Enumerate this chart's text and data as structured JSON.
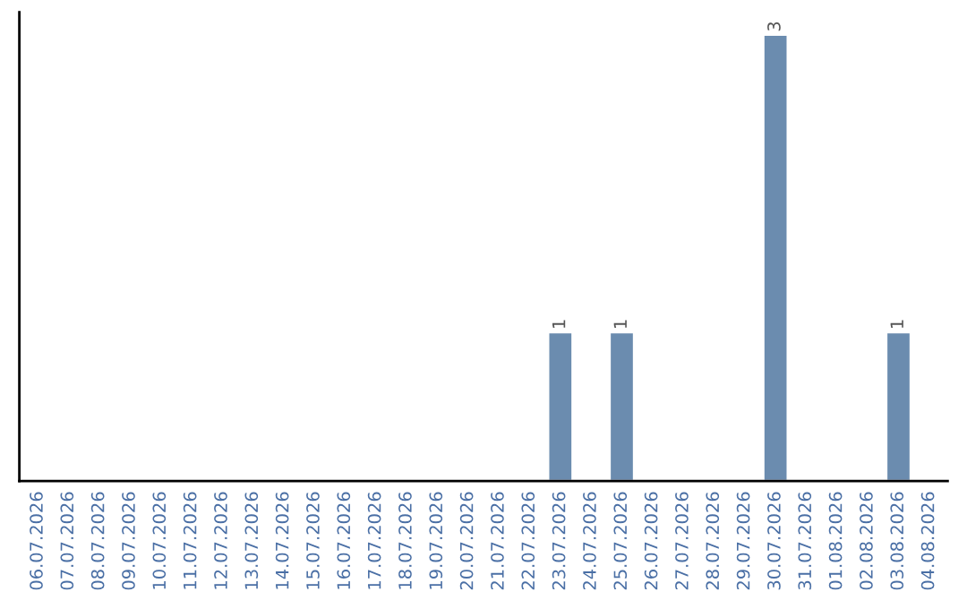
{
  "chart_data": {
    "type": "bar",
    "categories": [
      "06.07.2026",
      "07.07.2026",
      "08.07.2026",
      "09.07.2026",
      "10.07.2026",
      "11.07.2026",
      "12.07.2026",
      "13.07.2026",
      "14.07.2026",
      "15.07.2026",
      "16.07.2026",
      "17.07.2026",
      "18.07.2026",
      "19.07.2026",
      "20.07.2026",
      "21.07.2026",
      "22.07.2026",
      "23.07.2026",
      "24.07.2026",
      "25.07.2026",
      "26.07.2026",
      "27.07.2026",
      "28.07.2026",
      "29.07.2026",
      "30.07.2026",
      "31.07.2026",
      "01.08.2026",
      "02.08.2026",
      "03.08.2026",
      "04.08.2026"
    ],
    "values": [
      null,
      null,
      null,
      null,
      null,
      null,
      null,
      null,
      null,
      null,
      null,
      null,
      null,
      null,
      null,
      null,
      null,
      1,
      null,
      1,
      null,
      null,
      null,
      null,
      3,
      null,
      null,
      null,
      1,
      null
    ],
    "value_labels": [
      null,
      null,
      null,
      null,
      null,
      null,
      null,
      null,
      null,
      null,
      null,
      null,
      null,
      null,
      null,
      null,
      null,
      "1",
      null,
      "1",
      null,
      null,
      null,
      null,
      "3",
      null,
      null,
      null,
      "1",
      null
    ],
    "color": "#6b8caf",
    "grid": false,
    "legend": false
  }
}
